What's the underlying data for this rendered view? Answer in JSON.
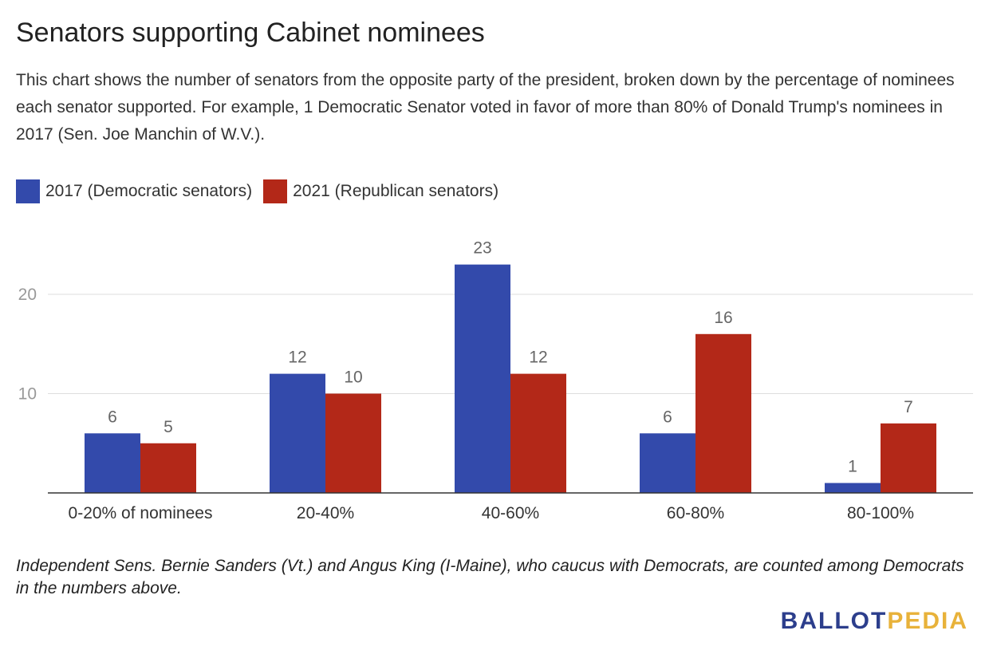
{
  "title": "Senators supporting Cabinet nominees",
  "subtitle": "This chart shows the number of senators from the opposite party of the president, broken down by the percentage of nominees each senator supported. For example, 1 Democratic Senator voted in favor of more than 80% of Donald Trump's nominees in 2017 (Sen. Joe Manchin of W.V.).",
  "footnote": "Independent Sens. Bernie Sanders (Vt.) and Angus King (I-Maine), who caucus with Democrats, are counted among Democrats in the numbers above.",
  "logo": {
    "part1": "BALLOT",
    "part2": "PEDIA"
  },
  "chart_data": {
    "type": "bar",
    "categories": [
      "0-20% of nominees",
      "20-40%",
      "40-60%",
      "60-80%",
      "80-100%"
    ],
    "series": [
      {
        "name": "2017 (Democratic senators)",
        "color": "#334aab",
        "values": [
          6,
          12,
          23,
          6,
          1
        ]
      },
      {
        "name": "2021 (Republican senators)",
        "color": "#b32818",
        "values": [
          5,
          10,
          12,
          16,
          7
        ]
      }
    ],
    "yticks": [
      10,
      20
    ],
    "ylim": [
      0,
      25
    ],
    "grid": true,
    "legend_position": "top-left",
    "data_labels": true
  }
}
